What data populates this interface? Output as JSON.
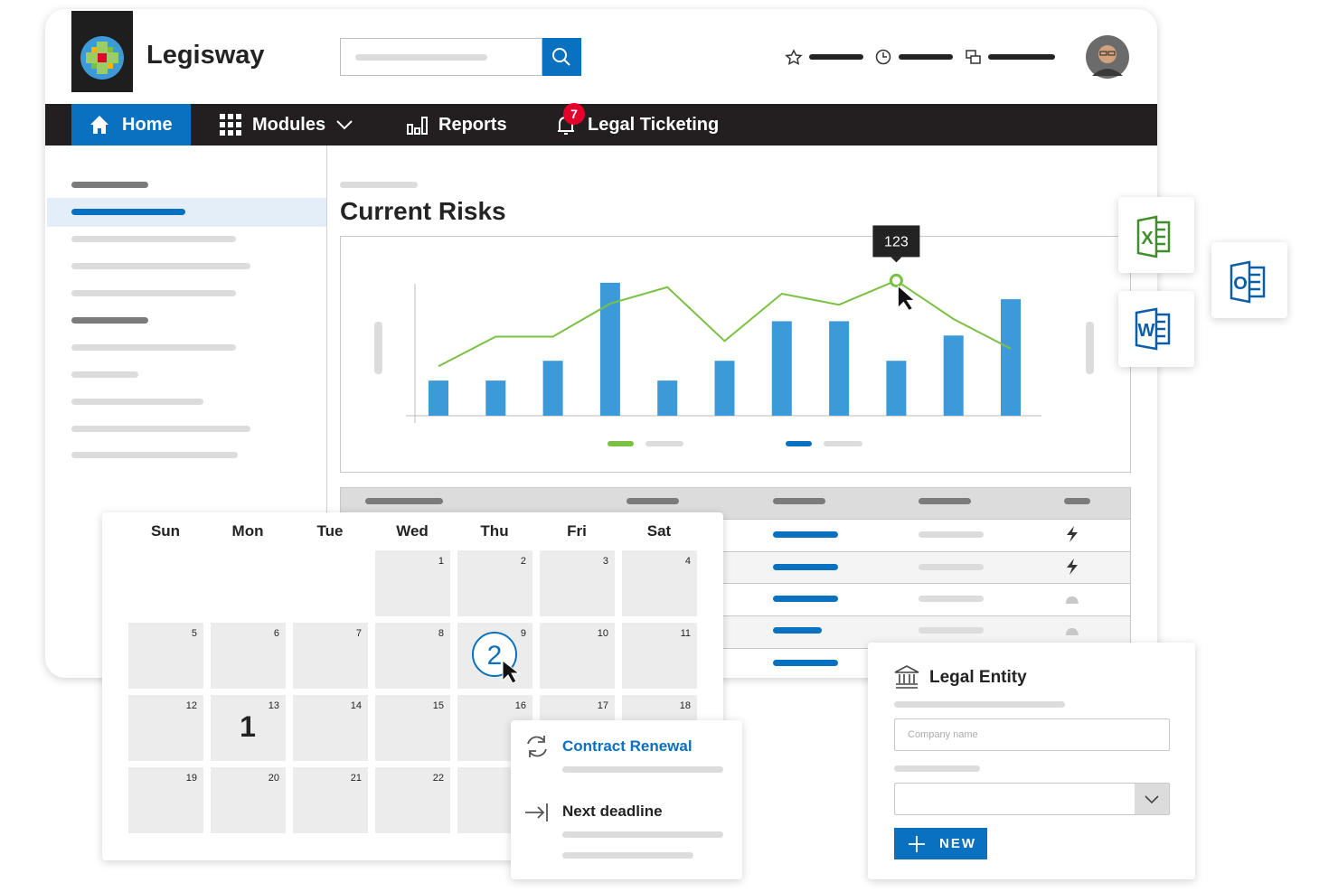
{
  "header": {
    "brand": "Legisway"
  },
  "nav": {
    "items": [
      "Home",
      "Modules",
      "Reports",
      "Legal Ticketing"
    ],
    "badge": 7
  },
  "page": {
    "title": "Current Risks"
  },
  "chart_data": {
    "type": "combo",
    "series": [
      {
        "type": "bar",
        "color": "#3d9ad8",
        "values": [
          32,
          32,
          50,
          121,
          32,
          50,
          86,
          86,
          50,
          73,
          106
        ]
      },
      {
        "type": "line",
        "color": "#7ac143",
        "values": [
          45,
          72,
          72,
          102,
          117,
          68,
          111,
          101,
          123,
          88,
          61
        ]
      }
    ],
    "ylim": [
      0,
      125
    ]
  },
  "apps": [
    "X",
    "O",
    "W"
  ],
  "calendar": {
    "days": [
      "Sun",
      "Mon",
      "Tue",
      "Wed",
      "Thu",
      "Fri",
      "Sat"
    ],
    "weeks": [
      [
        null,
        null,
        null,
        {
          "date": 1
        },
        {
          "date": 2
        },
        {
          "date": 3
        },
        {
          "date": 4
        }
      ],
      [
        {
          "date": 5
        },
        {
          "date": 6
        },
        {
          "date": 7
        },
        {
          "date": 8
        },
        {
          "date": 9,
          "badge": 2,
          "circled": true
        },
        {
          "date": 10
        },
        {
          "date": 11
        }
      ],
      [
        {
          "date": 12
        },
        {
          "date": 13,
          "badge": 1,
          "circled": false
        },
        {
          "date": 14
        },
        {
          "date": 15
        },
        {
          "date": 16
        },
        {
          "date": 17
        },
        {
          "date": 18
        }
      ],
      [
        {
          "date": 19
        },
        {
          "date": 20
        },
        {
          "date": 21
        },
        {
          "date": 22
        }
      ]
    ]
  },
  "reminders": [
    {
      "title": "Contract Renewal"
    },
    {
      "title": "Next deadline"
    }
  ],
  "entity": {
    "title": "Legal Entity",
    "placeholder": "Company name",
    "button": "NEW"
  }
}
